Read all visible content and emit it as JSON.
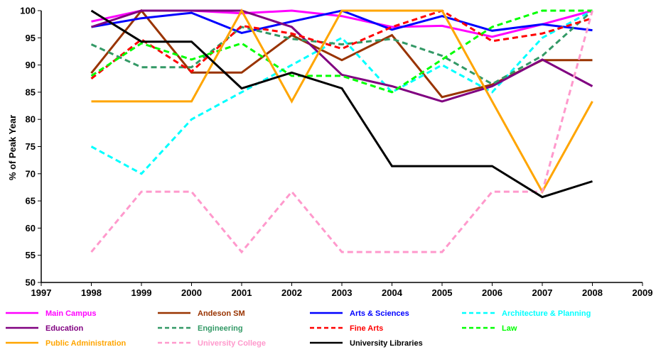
{
  "chart_data": {
    "type": "line",
    "title": "",
    "xlabel": "",
    "ylabel": "% of Peak Year",
    "xlim": [
      1997,
      2009
    ],
    "ylim": [
      50,
      100
    ],
    "x_ticks": [
      1997,
      1998,
      1999,
      2000,
      2001,
      2002,
      2003,
      2004,
      2005,
      2006,
      2007,
      2008,
      2009
    ],
    "y_ticks": [
      50,
      55,
      60,
      65,
      70,
      75,
      80,
      85,
      90,
      95,
      100
    ],
    "grid": false,
    "legend_position": "bottom",
    "x": [
      1998,
      1999,
      2000,
      2001,
      2002,
      2003,
      2004,
      2005,
      2006,
      2007,
      2008
    ],
    "series": [
      {
        "name": "Main Campus",
        "color": "#ff00ff",
        "dash": "solid",
        "values": [
          98.0,
          100.0,
          100.0,
          99.5,
          100.0,
          99.0,
          97.0,
          97.2,
          95.2,
          97.5,
          100.0
        ]
      },
      {
        "name": "Andeson SM",
        "color": "#993300",
        "dash": "solid",
        "values": [
          88.5,
          100.0,
          88.6,
          88.6,
          95.5,
          90.9,
          95.5,
          84.1,
          86.4,
          90.9,
          90.9
        ]
      },
      {
        "name": "Arts & Sciences",
        "color": "#0000ff",
        "dash": "solid",
        "values": [
          97.0,
          98.6,
          99.6,
          95.9,
          98.0,
          100.0,
          96.5,
          99.0,
          96.3,
          97.5,
          96.4
        ]
      },
      {
        "name": "Architecture & Planning",
        "color": "#00ffff",
        "dash": "dashed",
        "values": [
          75.0,
          70.0,
          80.0,
          85.0,
          90.0,
          95.0,
          85.0,
          90.0,
          85.0,
          95.0,
          100.0
        ]
      },
      {
        "name": "Education",
        "color": "#800080",
        "dash": "solid",
        "values": [
          97.0,
          100.0,
          100.0,
          100.0,
          97.0,
          88.2,
          86.1,
          83.3,
          86.1,
          91.0,
          86.1
        ]
      },
      {
        "name": "Engineering",
        "color": "#339966",
        "dash": "dashed",
        "values": [
          93.8,
          89.6,
          89.6,
          97.0,
          94.8,
          93.8,
          94.8,
          91.7,
          86.5,
          91.7,
          100.0
        ]
      },
      {
        "name": "Fine Arts",
        "color": "#ff0000",
        "dash": "dashed",
        "values": [
          87.5,
          94.7,
          88.8,
          97.2,
          95.8,
          93.0,
          97.0,
          100.0,
          94.4,
          95.8,
          98.6
        ]
      },
      {
        "name": "Law",
        "color": "#00ff00",
        "dash": "dashed",
        "values": [
          88.0,
          94.0,
          91.0,
          94.0,
          88.0,
          88.0,
          85.0,
          91.0,
          97.0,
          100.0,
          100.0
        ]
      },
      {
        "name": "Public Administration",
        "color": "#ffa500",
        "dash": "solid",
        "values": [
          83.3,
          83.3,
          83.3,
          100.0,
          83.3,
          100.0,
          100.0,
          100.0,
          83.3,
          66.7,
          83.3
        ]
      },
      {
        "name": "University College",
        "color": "#ff99cc",
        "dash": "dashed",
        "values": [
          55.6,
          66.7,
          66.7,
          55.6,
          66.7,
          55.6,
          55.6,
          55.6,
          66.7,
          66.7,
          100.0
        ]
      },
      {
        "name": "University Libraries",
        "color": "#000000",
        "dash": "solid",
        "values": [
          100.0,
          94.3,
          94.3,
          85.7,
          88.6,
          85.7,
          71.4,
          71.4,
          71.4,
          65.7,
          68.6
        ]
      }
    ]
  }
}
